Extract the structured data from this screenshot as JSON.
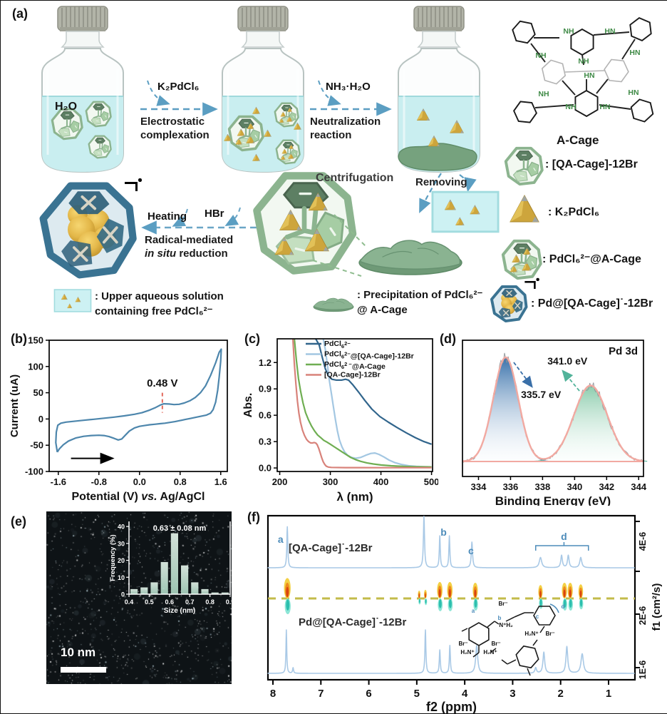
{
  "panels": {
    "a": "(a)",
    "b": "(b)",
    "c": "(c)",
    "d": "(d)",
    "e": "(e)",
    "f": "(f)"
  },
  "scheme": {
    "h2o": "H₂O",
    "step1_reagent": "K₂PdCl₆",
    "step1_name1": "Electrostatic",
    "step1_name2": "complexation",
    "step2_reagent": "NH₃·H₂O",
    "step2_name1": "Neutralization",
    "step2_name2": "reaction",
    "centrifugation": "Centrifugation",
    "removing": "Removing",
    "heating": "Heating",
    "hbr": "HBr",
    "step3_name1": "Radical-mediated",
    "step3_italic": "in situ",
    "step3_rest": " reduction",
    "acage_label": "A-Cage",
    "acage_atoms": [
      "NH",
      "HN",
      "NH",
      "HN",
      "NH",
      "HN",
      "NH",
      "HN",
      "NH",
      "HN"
    ],
    "legend_right": [
      {
        "label": ": [QA-Cage]-12Br"
      },
      {
        "label": ": K₂PdCl₆"
      },
      {
        "label": ": PdCl₆²⁻@A-Cage"
      },
      {
        "label": ": Pd@[QA-Cage]˙-12Br"
      }
    ],
    "legend_bottom": [
      {
        "line1": ": Upper aqueous solution",
        "line2": "containing free PdCl₆²⁻"
      },
      {
        "line1": ": Precipitation of  PdCl₆²⁻",
        "line2": "@ A-Cage"
      }
    ]
  },
  "tem": {
    "scalebar": "10 nm"
  },
  "chart_data": [
    {
      "id": "cv",
      "type": "line",
      "ylabel": "Current (uA)",
      "xlabel_parts": [
        {
          "t": "Potential (V) "
        },
        {
          "t": "vs.",
          "italic": true
        },
        {
          "t": " Ag/AgCl"
        }
      ],
      "xlim": [
        -1.78,
        1.73
      ],
      "ylim": [
        -100,
        150
      ],
      "xticks": [
        -1.6,
        -0.8,
        0.0,
        0.8,
        1.6
      ],
      "yticks": [
        -100,
        -50,
        0,
        50,
        100,
        150
      ],
      "annotation": "0.48 V",
      "annotation_x": 0.45,
      "color": "#4d86ac",
      "loop": [
        [
          -1.62,
          -63
        ],
        [
          -1.65,
          -45
        ],
        [
          -1.64,
          -25
        ],
        [
          -1.61,
          -12
        ],
        [
          -1.55,
          -8
        ],
        [
          -1.45,
          -6
        ],
        [
          -1.3,
          -4.5
        ],
        [
          -1.1,
          -2.5
        ],
        [
          -0.9,
          -0.5
        ],
        [
          -0.7,
          1.5
        ],
        [
          -0.5,
          3.5
        ],
        [
          -0.3,
          6
        ],
        [
          -0.1,
          9
        ],
        [
          0.05,
          12
        ],
        [
          0.2,
          17
        ],
        [
          0.32,
          22
        ],
        [
          0.42,
          27
        ],
        [
          0.48,
          29
        ],
        [
          0.58,
          28.5
        ],
        [
          0.68,
          27.5
        ],
        [
          0.78,
          28
        ],
        [
          0.88,
          30.5
        ],
        [
          1.0,
          35
        ],
        [
          1.1,
          41
        ],
        [
          1.2,
          50
        ],
        [
          1.3,
          63
        ],
        [
          1.4,
          83
        ],
        [
          1.5,
          107
        ],
        [
          1.57,
          127
        ],
        [
          1.61,
          133
        ],
        [
          1.6,
          110
        ],
        [
          1.57,
          80
        ],
        [
          1.54,
          55
        ],
        [
          1.5,
          32
        ],
        [
          1.45,
          18
        ],
        [
          1.4,
          11
        ],
        [
          1.32,
          7.5
        ],
        [
          1.2,
          5
        ],
        [
          1.1,
          3
        ],
        [
          1.0,
          1
        ],
        [
          0.9,
          -1
        ],
        [
          0.8,
          -3
        ],
        [
          0.7,
          -5
        ],
        [
          0.6,
          -6.5
        ],
        [
          0.5,
          -8
        ],
        [
          0.4,
          -9
        ],
        [
          0.3,
          -10
        ],
        [
          0.2,
          -11
        ],
        [
          0.1,
          -12.5
        ],
        [
          0.0,
          -14
        ],
        [
          -0.1,
          -17
        ],
        [
          -0.2,
          -23
        ],
        [
          -0.28,
          -31
        ],
        [
          -0.35,
          -38
        ],
        [
          -0.42,
          -40
        ],
        [
          -0.5,
          -37
        ],
        [
          -0.6,
          -33.5
        ],
        [
          -0.7,
          -31.5
        ],
        [
          -0.8,
          -31
        ],
        [
          -0.95,
          -31.5
        ],
        [
          -1.1,
          -33
        ],
        [
          -1.25,
          -36
        ],
        [
          -1.4,
          -42
        ],
        [
          -1.5,
          -49
        ],
        [
          -1.58,
          -57
        ],
        [
          -1.62,
          -63
        ]
      ]
    },
    {
      "id": "uvvis",
      "type": "line",
      "xlabel": "λ (nm)",
      "ylabel": "Abs.",
      "xlim": [
        195,
        502
      ],
      "ylim": [
        -0.04,
        1.47
      ],
      "xticks": [
        200,
        300,
        400,
        500
      ],
      "yticks": [
        0.0,
        0.3,
        0.6,
        0.9,
        1.2
      ],
      "legend_position": "top-left-inside",
      "series": [
        {
          "color": "#31658c",
          "label": [
            {
              "t": "PdCl"
            },
            {
              "t": "6",
              "s": "sub"
            },
            {
              "t": "2−",
              "s": "sup"
            }
          ],
          "points": [
            [
              271,
              1.47
            ],
            [
              278,
              1.4
            ],
            [
              284,
              1.26
            ],
            [
              290,
              1.13
            ],
            [
              296,
              1.05
            ],
            [
              303,
              1.01
            ],
            [
              312,
              1.0
            ],
            [
              322,
              1.0
            ],
            [
              330,
              1.01
            ],
            [
              336,
              1.0
            ],
            [
              344,
              0.95
            ],
            [
              355,
              0.87
            ],
            [
              368,
              0.77
            ],
            [
              382,
              0.67
            ],
            [
              398,
              0.585
            ],
            [
              415,
              0.52
            ],
            [
              432,
              0.46
            ],
            [
              450,
              0.4
            ],
            [
              468,
              0.345
            ],
            [
              485,
              0.3
            ],
            [
              500,
              0.27
            ]
          ]
        },
        {
          "color": "#a3c7e2",
          "label": [
            {
              "t": "PdCl"
            },
            {
              "t": "6",
              "s": "sub"
            },
            {
              "t": "2−",
              "s": "sup"
            },
            {
              "t": "@[QA-Cage]-12Br"
            }
          ],
          "points": [
            [
              286,
              1.47
            ],
            [
              290,
              1.35
            ],
            [
              294,
              1.18
            ],
            [
              298,
              1.0
            ],
            [
              302,
              0.85
            ],
            [
              306,
              0.7
            ],
            [
              310,
              0.55
            ],
            [
              314,
              0.42
            ],
            [
              318,
              0.32
            ],
            [
              323,
              0.24
            ],
            [
              328,
              0.185
            ],
            [
              334,
              0.145
            ],
            [
              342,
              0.12
            ],
            [
              350,
              0.11
            ],
            [
              360,
              0.12
            ],
            [
              370,
              0.145
            ],
            [
              380,
              0.165
            ],
            [
              388,
              0.17
            ],
            [
              396,
              0.155
            ],
            [
              406,
              0.125
            ],
            [
              416,
              0.09
            ],
            [
              428,
              0.06
            ],
            [
              440,
              0.04
            ],
            [
              455,
              0.025
            ],
            [
              470,
              0.018
            ],
            [
              485,
              0.014
            ],
            [
              500,
              0.012
            ]
          ]
        },
        {
          "color": "#6fae52",
          "label": [
            {
              "t": "PdCl"
            },
            {
              "t": "6",
              "s": "sub"
            },
            {
              "t": "2 −",
              "s": "sup"
            },
            {
              "t": "@A-Cage"
            }
          ],
          "points": [
            [
              229,
              1.47
            ],
            [
              233,
              1.22
            ],
            [
              237,
              1.02
            ],
            [
              241,
              0.88
            ],
            [
              246,
              0.74
            ],
            [
              251,
              0.63
            ],
            [
              257,
              0.545
            ],
            [
              263,
              0.475
            ],
            [
              269,
              0.42
            ],
            [
              275,
              0.375
            ],
            [
              281,
              0.345
            ],
            [
              287,
              0.315
            ],
            [
              293,
              0.295
            ],
            [
              300,
              0.27
            ],
            [
              308,
              0.24
            ],
            [
              316,
              0.21
            ],
            [
              324,
              0.18
            ],
            [
              332,
              0.15
            ],
            [
              340,
              0.12
            ],
            [
              350,
              0.095
            ],
            [
              360,
              0.075
            ],
            [
              372,
              0.058
            ],
            [
              385,
              0.045
            ],
            [
              400,
              0.034
            ],
            [
              420,
              0.025
            ],
            [
              445,
              0.018
            ],
            [
              470,
              0.014
            ],
            [
              500,
              0.012
            ]
          ]
        },
        {
          "color": "#d8827a",
          "label": [
            {
              "t": "[QA-Cage]-12Br"
            }
          ],
          "points": [
            [
              226,
              1.47
            ],
            [
              229,
              1.18
            ],
            [
              232,
              0.95
            ],
            [
              235,
              0.76
            ],
            [
              238,
              0.62
            ],
            [
              241,
              0.52
            ],
            [
              245,
              0.43
            ],
            [
              249,
              0.37
            ],
            [
              253,
              0.325
            ],
            [
              257,
              0.3
            ],
            [
              261,
              0.285
            ],
            [
              265,
              0.285
            ],
            [
              268,
              0.29
            ],
            [
              271,
              0.285
            ],
            [
              274,
              0.265
            ],
            [
              277,
              0.225
            ],
            [
              280,
              0.17
            ],
            [
              283,
              0.115
            ],
            [
              286,
              0.07
            ],
            [
              289,
              0.04
            ],
            [
              292,
              0.02
            ],
            [
              296,
              0.01
            ],
            [
              302,
              0.006
            ],
            [
              330,
              0.004
            ],
            [
              400,
              0.003
            ],
            [
              500,
              0.003
            ]
          ]
        }
      ]
    },
    {
      "id": "xps",
      "type": "area",
      "xlabel": "Binding Energy (eV)",
      "corner_label": "Pd 3d",
      "xlim": [
        333,
        344.3
      ],
      "xticks": [
        334,
        336,
        338,
        340,
        342,
        344
      ],
      "envelope_color": "#f2a9a1",
      "raw_color": "#8d9297",
      "peaks": [
        {
          "center": 335.7,
          "sigma": 0.78,
          "height": 1.0,
          "label": "335.7 eV",
          "fill": "blue"
        },
        {
          "center": 341.0,
          "sigma": 1.05,
          "height": 0.73,
          "label": "341.0 eV",
          "fill": "green"
        }
      ]
    },
    {
      "id": "hist",
      "type": "bar",
      "title": "0.63 ± 0.08 nm",
      "xlabel": "Size (nm)",
      "ylabel": "Frequency (%)",
      "xlim": [
        0.4,
        0.9
      ],
      "ylim": [
        0,
        43
      ],
      "xticks": [
        0.4,
        0.5,
        0.6,
        0.7,
        0.8,
        0.9
      ],
      "yticks": [
        0,
        10,
        20,
        30,
        40
      ],
      "bin_start": 0.4,
      "bin_width": 0.05,
      "values": [
        3,
        4,
        7,
        19,
        36,
        17,
        7,
        3,
        1,
        1
      ]
    },
    {
      "id": "dosy",
      "type": "nmr-dosy",
      "xlabel": "f2 (ppm)",
      "ylabel": "f1 (cm²/s)",
      "xticks": [
        8,
        7,
        6,
        5,
        4,
        3,
        2,
        1
      ],
      "ytick_labels": [
        "4E-6",
        "2E-6",
        "1E-6"
      ],
      "top_label": "[QA-Cage]˙-12Br",
      "bottom_label": "Pd@[QA-Cage]˙-12Br",
      "peak_labels": [
        "a",
        "b",
        "c",
        "d"
      ],
      "trace_color": "#a9c9e6",
      "top_peaks": [
        [
          7.7,
          0.8,
          0.012
        ],
        [
          4.85,
          1.0,
          0.014
        ],
        [
          4.52,
          0.62,
          0.012
        ],
        [
          4.32,
          0.62,
          0.012
        ],
        [
          3.85,
          0.5,
          0.016
        ],
        [
          2.42,
          0.2,
          0.03
        ],
        [
          1.98,
          0.24,
          0.02
        ],
        [
          1.84,
          0.24,
          0.02
        ],
        [
          1.58,
          0.2,
          0.025
        ]
      ],
      "bottom_peaks": [
        [
          7.72,
          0.78,
          0.01
        ],
        [
          7.58,
          0.1,
          0.012
        ],
        [
          4.82,
          0.78,
          0.012
        ],
        [
          4.52,
          0.42,
          0.012
        ],
        [
          4.31,
          0.5,
          0.012
        ],
        [
          3.75,
          0.5,
          0.025
        ],
        [
          2.52,
          0.1,
          0.02
        ],
        [
          2.35,
          0.38,
          0.022
        ],
        [
          1.87,
          0.48,
          0.022
        ],
        [
          1.55,
          0.35,
          0.03
        ]
      ],
      "spots": [
        [
          7.7,
          1.3
        ],
        [
          4.95,
          0.5
        ],
        [
          4.82,
          0.55
        ],
        [
          4.52,
          1.05
        ],
        [
          4.31,
          1.05
        ],
        [
          3.78,
          1.0
        ],
        [
          2.42,
          0.85
        ],
        [
          1.92,
          1.0
        ],
        [
          1.8,
          1.0
        ],
        [
          1.58,
          0.9
        ]
      ],
      "molecule_labels": [
        "a",
        "b",
        "c",
        "d",
        "Br⁻",
        "Br⁻",
        "Br⁻",
        "Br⁻",
        "N⁺H₂",
        "H₂N⁺",
        "H₂N⁺",
        "H₂N⁺"
      ]
    }
  ]
}
